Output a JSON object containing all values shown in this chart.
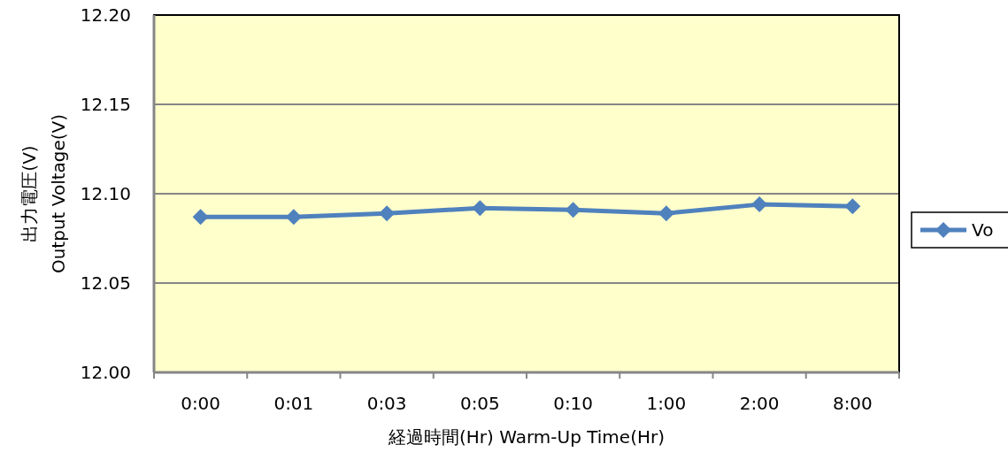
{
  "chart_data": {
    "type": "line",
    "xlabel": "経過時間(Hr)  Warm-Up Time(Hr)",
    "ylabel": "出力電圧(V)\nOutput  Voltage(V)",
    "categories": [
      "0:00",
      "0:01",
      "0:03",
      "0:05",
      "0:10",
      "1:00",
      "2:00",
      "8:00"
    ],
    "series": [
      {
        "name": "Vo",
        "color": "#4f81bd",
        "values": [
          12.087,
          12.087,
          12.089,
          12.092,
          12.091,
          12.089,
          12.094,
          12.093
        ]
      }
    ],
    "ylim": [
      12.0,
      12.2
    ],
    "yticks": [
      {
        "value": 12.0,
        "label": "12.00"
      },
      {
        "value": 12.05,
        "label": "12.05"
      },
      {
        "value": 12.1,
        "label": "12.10"
      },
      {
        "value": 12.15,
        "label": "12.15"
      },
      {
        "value": 12.2,
        "label": "12.20"
      }
    ],
    "grid": "y",
    "legend": "right",
    "marker": "diamond",
    "line_style": "solid"
  }
}
